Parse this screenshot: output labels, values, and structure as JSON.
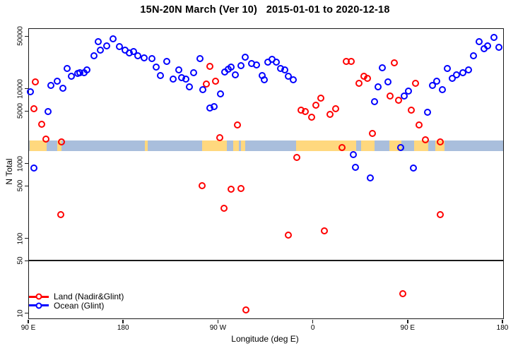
{
  "title": "15N-20N March (Ver 10)   2015-01-01 to 2020-12-18",
  "legend": {
    "items": [
      {
        "label": "Land (Nadir&Glint)",
        "color": "#FF0000"
      },
      {
        "label": "Ocean (Glint)",
        "color": "#0000FF"
      }
    ]
  },
  "chart_data": {
    "type": "scatter",
    "title": "15N-20N March (Ver 10)  2015-01-01 to 2020-12-18",
    "xlabel": "Longitude (deg E)",
    "ylabel": "N Total",
    "x_axis": {
      "range_deg": [
        90,
        540
      ],
      "note": "longitude axis starts at 90E and wraps eastward through 180, 90W, 0, 90E to 180",
      "ticks": [
        {
          "deg": 90,
          "label": "90 E"
        },
        {
          "deg": 180,
          "label": "180"
        },
        {
          "deg": 270,
          "label": "90 W"
        },
        {
          "deg": 360,
          "label": "0"
        },
        {
          "deg": 450,
          "label": "90 E"
        },
        {
          "deg": 540,
          "label": "180"
        }
      ]
    },
    "y_axis": {
      "scale": "log10",
      "range": [
        8,
        60000
      ],
      "ticks": [
        10,
        50,
        100,
        500,
        1000,
        5000,
        10000,
        50000
      ]
    },
    "reference_line_y": 50,
    "map_strip": {
      "description": "land/ocean mask of the 15N-20N latitude band",
      "value_range": [
        1450,
        2000
      ],
      "ocean_color": "#A9BEDC",
      "land_color": "#FFD87E",
      "land_segments_deg": [
        [
          90.5,
          107
        ],
        [
          117,
          121
        ],
        [
          200,
          203
        ],
        [
          254,
          278
        ],
        [
          284,
          289
        ],
        [
          291,
          295
        ],
        [
          343.5,
          400.5
        ],
        [
          405,
          418
        ],
        [
          432,
          443.5
        ],
        [
          455.5,
          469
        ],
        [
          475.5,
          484.5
        ]
      ]
    },
    "legend_position": "bottom-left",
    "series": [
      {
        "name": "Land (Nadir&Glint)",
        "color": "#FF0000",
        "points": [
          [
            95,
            5300
          ],
          [
            96,
            12100
          ],
          [
            102,
            3300
          ],
          [
            106,
            2100
          ],
          [
            120,
            205
          ],
          [
            121,
            1900
          ],
          [
            254,
            500
          ],
          [
            258,
            11400
          ],
          [
            262,
            19500
          ],
          [
            267,
            12400
          ],
          [
            271,
            2200
          ],
          [
            275,
            250
          ],
          [
            282,
            450
          ],
          [
            288,
            3200
          ],
          [
            291,
            460
          ],
          [
            296,
            11
          ],
          [
            336,
            110
          ],
          [
            344,
            1200
          ],
          [
            348,
            5100
          ],
          [
            352,
            4900
          ],
          [
            358,
            4100
          ],
          [
            362,
            6000
          ],
          [
            367,
            7400
          ],
          [
            370,
            125
          ],
          [
            376,
            4500
          ],
          [
            381,
            5300
          ],
          [
            387,
            1600
          ],
          [
            391,
            23000
          ],
          [
            396,
            23000
          ],
          [
            403,
            11600
          ],
          [
            408,
            14400
          ],
          [
            411,
            13500
          ],
          [
            416,
            2500
          ],
          [
            433,
            7900
          ],
          [
            437,
            22000
          ],
          [
            441,
            6900
          ],
          [
            445,
            18
          ],
          [
            453,
            5100
          ],
          [
            457,
            11600
          ],
          [
            460,
            3200
          ],
          [
            466,
            2050
          ],
          [
            480,
            1900
          ],
          [
            480,
            205
          ]
        ]
      },
      {
        "name": "Ocean (Glint)",
        "color": "#0000FF",
        "points": [
          [
            91,
            9000
          ],
          [
            95,
            860
          ],
          [
            108,
            4900
          ],
          [
            111,
            11000
          ],
          [
            117,
            12400
          ],
          [
            122,
            10000
          ],
          [
            126,
            18400
          ],
          [
            130,
            14400
          ],
          [
            136,
            15800
          ],
          [
            138,
            16100
          ],
          [
            142,
            16100
          ],
          [
            145,
            17600
          ],
          [
            152,
            27200
          ],
          [
            156,
            42000
          ],
          [
            158,
            32300
          ],
          [
            164,
            36900
          ],
          [
            170,
            46000
          ],
          [
            176,
            36100
          ],
          [
            181,
            32300
          ],
          [
            185,
            29700
          ],
          [
            189,
            31000
          ],
          [
            193,
            27200
          ],
          [
            199,
            25500
          ],
          [
            207,
            24900
          ],
          [
            211,
            19200
          ],
          [
            215,
            14800
          ],
          [
            221,
            22800
          ],
          [
            227,
            13200
          ],
          [
            232,
            17600
          ],
          [
            235,
            13800
          ],
          [
            239,
            13200
          ],
          [
            242,
            10400
          ],
          [
            246,
            16100
          ],
          [
            252,
            24900
          ],
          [
            255,
            9600
          ],
          [
            262,
            5400
          ],
          [
            266,
            5700
          ],
          [
            272,
            8400
          ],
          [
            276,
            16400
          ],
          [
            279,
            17900
          ],
          [
            282,
            19200
          ],
          [
            286,
            15100
          ],
          [
            291,
            20000
          ],
          [
            295,
            26000
          ],
          [
            301,
            21500
          ],
          [
            306,
            20500
          ],
          [
            311,
            14800
          ],
          [
            313,
            13000
          ],
          [
            317,
            22300
          ],
          [
            321,
            24400
          ],
          [
            325,
            22300
          ],
          [
            329,
            18400
          ],
          [
            333,
            17600
          ],
          [
            336,
            14400
          ],
          [
            341,
            13000
          ],
          [
            398,
            1300
          ],
          [
            400,
            880
          ],
          [
            414,
            630
          ],
          [
            418,
            6600
          ],
          [
            421,
            10400
          ],
          [
            425,
            18800
          ],
          [
            431,
            12100
          ],
          [
            443,
            1600
          ],
          [
            446,
            7900
          ],
          [
            450,
            9200
          ],
          [
            455,
            860
          ],
          [
            468,
            4800
          ],
          [
            473,
            10900
          ],
          [
            477,
            12400
          ],
          [
            482,
            9600
          ],
          [
            487,
            18400
          ],
          [
            492,
            13500
          ],
          [
            496,
            15100
          ],
          [
            502,
            16100
          ],
          [
            507,
            17600
          ],
          [
            512,
            27200
          ],
          [
            517,
            42000
          ],
          [
            522,
            33700
          ],
          [
            525,
            36900
          ],
          [
            531,
            48000
          ],
          [
            536,
            35300
          ]
        ]
      }
    ]
  }
}
